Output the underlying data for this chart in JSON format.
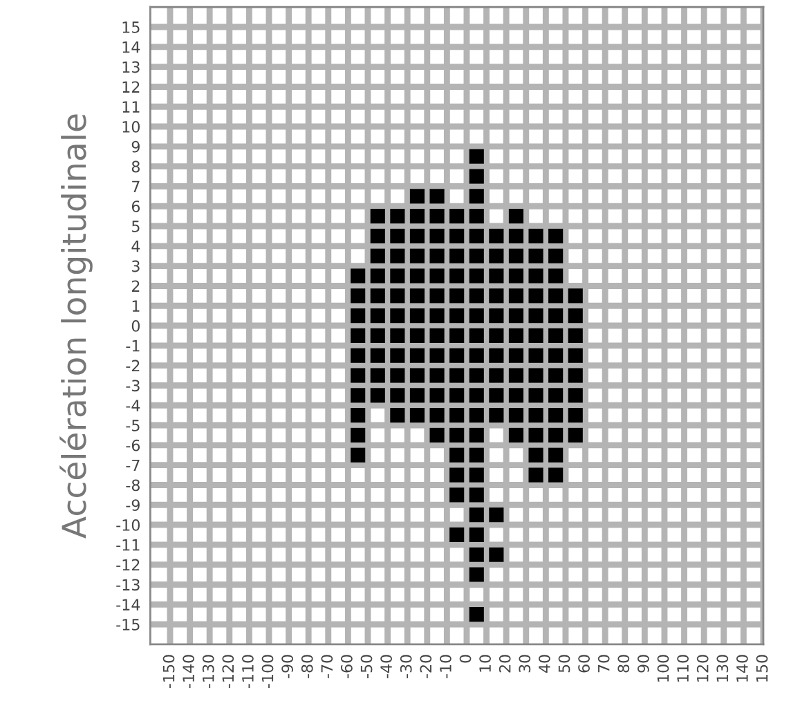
{
  "chart_data": {
    "type": "scatter",
    "ylabel": "Accélération longitudinale",
    "xlim": [
      -160,
      150
    ],
    "ylim": [
      -16,
      16
    ],
    "xticks": [
      -150,
      -140,
      -130,
      -120,
      -110,
      -100,
      -90,
      -80,
      -70,
      -60,
      -50,
      -40,
      -30,
      -20,
      -10,
      0,
      10,
      20,
      30,
      40,
      50,
      60,
      70,
      80,
      90,
      100,
      110,
      120,
      130,
      140,
      150
    ],
    "yticks": [
      15,
      14,
      13,
      12,
      11,
      10,
      9,
      8,
      7,
      6,
      5,
      4,
      3,
      2,
      1,
      0,
      -1,
      -2,
      -3,
      -4,
      -5,
      -6,
      -7,
      -8,
      -9,
      -10,
      -11,
      -12,
      -13,
      -14,
      -15
    ],
    "grid": true,
    "marker": "square",
    "series": [
      {
        "color": "#000000",
        "x": [
          5,
          5,
          -25,
          -15,
          5,
          -45,
          -35,
          -25,
          -15,
          -5,
          5,
          25,
          -45,
          -35,
          -25,
          -15,
          -5,
          5,
          15,
          25,
          35,
          45,
          -45,
          -35,
          -25,
          -15,
          -5,
          5,
          15,
          25,
          35,
          45,
          -55,
          -45,
          -35,
          -25,
          -15,
          -5,
          5,
          15,
          25,
          35,
          45,
          -55,
          -45,
          -35,
          -25,
          -15,
          -5,
          5,
          15,
          25,
          35,
          45,
          55,
          -55,
          -45,
          -35,
          -25,
          -15,
          -5,
          5,
          15,
          25,
          35,
          45,
          55,
          -55,
          -45,
          -35,
          -25,
          -15,
          -5,
          5,
          15,
          25,
          35,
          45,
          55,
          -55,
          -45,
          -35,
          -25,
          -15,
          -5,
          5,
          15,
          25,
          35,
          45,
          55,
          -55,
          -45,
          -35,
          -25,
          -15,
          -5,
          5,
          15,
          25,
          35,
          45,
          55,
          -55,
          -45,
          -35,
          -25,
          -15,
          -5,
          5,
          15,
          25,
          35,
          45,
          55,
          -55,
          -35,
          -25,
          -15,
          -5,
          5,
          15,
          25,
          35,
          45,
          55,
          -55,
          -15,
          -5,
          5,
          25,
          35,
          45,
          55,
          -55,
          -5,
          5,
          35,
          45,
          -5,
          5,
          35,
          45,
          -5,
          5,
          5,
          15,
          -5,
          5,
          5,
          15,
          5,
          5
        ],
        "values": [
          8.5,
          7.5,
          6.5,
          6.5,
          6.5,
          5.5,
          5.5,
          5.5,
          5.5,
          5.5,
          5.5,
          5.5,
          4.5,
          4.5,
          4.5,
          4.5,
          4.5,
          4.5,
          4.5,
          4.5,
          4.5,
          4.5,
          3.5,
          3.5,
          3.5,
          3.5,
          3.5,
          3.5,
          3.5,
          3.5,
          3.5,
          3.5,
          2.5,
          2.5,
          2.5,
          2.5,
          2.5,
          2.5,
          2.5,
          2.5,
          2.5,
          2.5,
          2.5,
          1.5,
          1.5,
          1.5,
          1.5,
          1.5,
          1.5,
          1.5,
          1.5,
          1.5,
          1.5,
          1.5,
          1.5,
          0.5,
          0.5,
          0.5,
          0.5,
          0.5,
          0.5,
          0.5,
          0.5,
          0.5,
          0.5,
          0.5,
          0.5,
          -0.5,
          -0.5,
          -0.5,
          -0.5,
          -0.5,
          -0.5,
          -0.5,
          -0.5,
          -0.5,
          -0.5,
          -0.5,
          -0.5,
          -1.5,
          -1.5,
          -1.5,
          -1.5,
          -1.5,
          -1.5,
          -1.5,
          -1.5,
          -1.5,
          -1.5,
          -1.5,
          -1.5,
          -2.5,
          -2.5,
          -2.5,
          -2.5,
          -2.5,
          -2.5,
          -2.5,
          -2.5,
          -2.5,
          -2.5,
          -2.5,
          -2.5,
          -3.5,
          -3.5,
          -3.5,
          -3.5,
          -3.5,
          -3.5,
          -3.5,
          -3.5,
          -3.5,
          -3.5,
          -3.5,
          -3.5,
          -4.5,
          -4.5,
          -4.5,
          -4.5,
          -4.5,
          -4.5,
          -4.5,
          -4.5,
          -4.5,
          -4.5,
          -4.5,
          -5.5,
          -5.5,
          -5.5,
          -5.5,
          -5.5,
          -5.5,
          -5.5,
          -5.5,
          -6.5,
          -6.5,
          -6.5,
          -6.5,
          -6.5,
          -7.5,
          -7.5,
          -7.5,
          -7.5,
          -8.5,
          -8.5,
          -9.5,
          -9.5,
          -10.5,
          -10.5,
          -11.5,
          -11.5,
          -12.5,
          -14.5
        ]
      }
    ]
  }
}
